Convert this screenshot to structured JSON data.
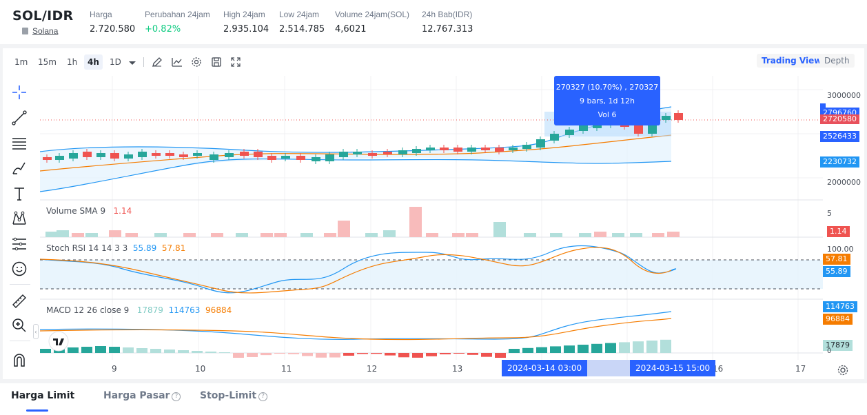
{
  "header": {
    "pair": "SOL/IDR",
    "coin_name": "Solana",
    "stats": [
      {
        "label": "Harga",
        "value": "2.720.580"
      },
      {
        "label": "Perubahan 24jam",
        "value": "+0.82%"
      },
      {
        "label": "High 24jam",
        "value": "2.935.104"
      },
      {
        "label": "Low 24jam",
        "value": "2.514.785"
      },
      {
        "label": "Volume 24jam(SOL)",
        "value": "4,6021"
      },
      {
        "label": "24h Bab(IDR)",
        "value": "12.767.313"
      }
    ]
  },
  "toolbar": {
    "timeframes": [
      "1m",
      "15m",
      "1h",
      "4h",
      "1D"
    ],
    "active_timeframe": "4h",
    "icons": [
      "pencil-icon",
      "line-chart-icon",
      "gear-icon",
      "save-icon",
      "fullscreen-icon"
    ],
    "view_tabs": [
      "Trading View",
      "Depth"
    ],
    "active_view": "Trading View"
  },
  "left_tools": [
    "crosshair-icon",
    "trendline-icon",
    "fib-lines-icon",
    "brush-icon",
    "text-icon",
    "pattern-icon",
    "prediction-icon",
    "smile-icon",
    "ruler-icon",
    "zoom-in-icon",
    "magnet-icon"
  ],
  "price_axis": {
    "ticks": [
      "3000000",
      "2000000"
    ],
    "labels": [
      {
        "text": "2796760",
        "color": "#2962ff"
      },
      {
        "text": "2720580",
        "color": "#e8505b"
      },
      {
        "text": "2526433",
        "color": "#2962ff"
      },
      {
        "text": "2230732",
        "color": "#2196f3"
      }
    ]
  },
  "tooltip": {
    "line1": "270327 (10.70%) , 270327",
    "line2": "9 bars, 1d 12h",
    "line3": "Vol 6"
  },
  "volume": {
    "title": "Volume SMA 9",
    "value": "1.14",
    "axis_tick": "5",
    "axis_label": "1.14"
  },
  "stoch_rsi": {
    "title": "Stoch RSI 14 14 3 3",
    "k": "55.89",
    "d": "57.81",
    "axis_tick": "100.00"
  },
  "macd": {
    "title": "MACD 12 26 close 9",
    "hist": "17879",
    "macd": "114763",
    "signal": "96884",
    "axis_tick": "0"
  },
  "x_axis": {
    "ticks": [
      "9",
      "10",
      "11",
      "12",
      "13",
      "15",
      "16",
      "17"
    ],
    "range_start": "2024-03-14   03:00",
    "range_end": "2024-03-15   15:00"
  },
  "bottom_tabs": [
    "Harga Limit",
    "Harga Pasar",
    "Stop-Limit"
  ],
  "colors": {
    "up": "#26a69a",
    "down": "#ef5350",
    "accent": "#2962ff",
    "ma": "#f57c00",
    "bb": "#2196f3"
  }
}
